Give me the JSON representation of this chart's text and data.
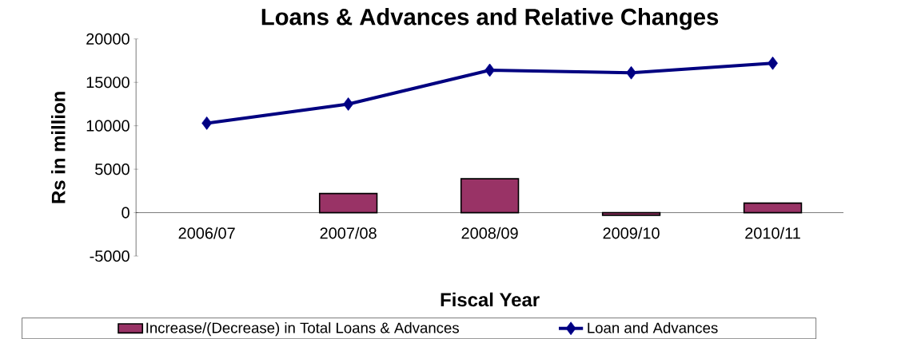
{
  "chart_data": {
    "type": "bar",
    "title": "Loans & Advances and Relative Changes",
    "xlabel": "Fiscal Year",
    "ylabel": "Rs in million",
    "categories": [
      "2006/07",
      "2007/08",
      "2008/09",
      "2009/10",
      "2010/11"
    ],
    "series": [
      {
        "name": "Increase/(Decrease) in Total Loans & Advances",
        "color": "#993366",
        "values": [
          null,
          2200,
          3900,
          -300,
          1100
        ]
      },
      {
        "name": "Loan and Advances",
        "type": "line",
        "color": "#000080",
        "marker": "diamond",
        "values": [
          10300,
          12500,
          16400,
          16100,
          17200
        ]
      }
    ],
    "ylim": [
      -5000,
      20000
    ],
    "yticks": [
      -5000,
      0,
      5000,
      10000,
      15000,
      20000
    ],
    "grid": false,
    "legend": "bottom"
  }
}
